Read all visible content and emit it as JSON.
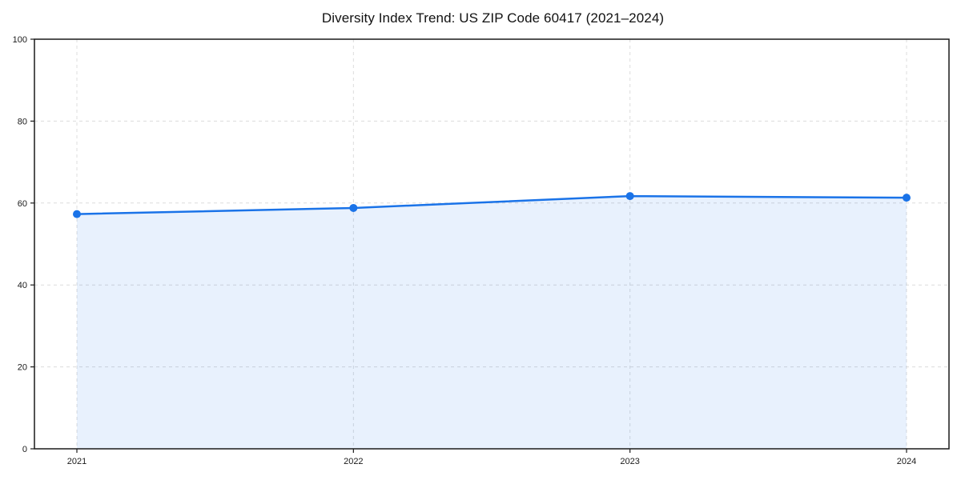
{
  "title": "Diversity Index Trend: US ZIP Code 60417 (2021–2024)",
  "chart_data": {
    "type": "area",
    "title": "Diversity Index Trend: US ZIP Code 60417 (2021–2024)",
    "x": [
      "2021",
      "2022",
      "2023",
      "2024"
    ],
    "series": [
      {
        "name": "Diversity Index",
        "values": [
          57.3,
          58.8,
          61.7,
          61.3
        ]
      }
    ],
    "xlabel": "",
    "ylabel": "",
    "ylim": [
      0,
      100
    ],
    "yticks": [
      0,
      20,
      40,
      60,
      80,
      100
    ],
    "grid": "dashed-both-axes",
    "legend_position": "none",
    "frame": "full-box",
    "colors": {
      "line": "#1a73e8",
      "marker": "#1a73e8",
      "fill": "rgba(26,115,232,0.10)",
      "grid": "#dcdcdc",
      "spine": "#1a1a1a",
      "tick_text": "#1a1a1a",
      "background": "#ffffff"
    }
  }
}
